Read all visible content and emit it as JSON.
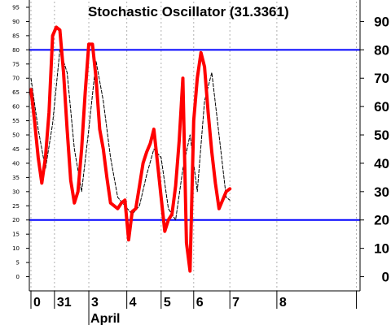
{
  "chart_data": {
    "type": "line",
    "title": "Stochastic Oscillator (31.3361)",
    "ylim": [
      -5,
      97
    ],
    "y_ticks_right": [
      0,
      10,
      20,
      30,
      40,
      50,
      60,
      70,
      80,
      90
    ],
    "y_ticks_left": [
      0,
      5,
      10,
      15,
      20,
      25,
      30,
      35,
      40,
      45,
      50,
      55,
      60,
      65,
      70,
      75,
      80,
      85,
      90,
      95
    ],
    "x_ticks": [
      {
        "label": "0",
        "x": 0
      },
      {
        "label": "31",
        "x": 6.5
      },
      {
        "label": "3",
        "x": 16
      },
      {
        "label": "4",
        "x": 26.5
      },
      {
        "label": "5",
        "x": 36
      },
      {
        "label": "6",
        "x": 45
      },
      {
        "label": "7",
        "x": 55
      },
      {
        "label": "8",
        "x": 68
      },
      {
        "label": "",
        "x": 90
      }
    ],
    "month_label": {
      "label": "April",
      "x": 16
    },
    "xlim": [
      0,
      91
    ],
    "reference_lines": [
      {
        "value": 80,
        "color": "#0000ff"
      },
      {
        "value": 20,
        "color": "#0000ff"
      }
    ],
    "grid": "vertical-dotted",
    "series": [
      {
        "color": "#ff0000",
        "style": "thick-solid",
        "points": [
          [
            0,
            66
          ],
          [
            1,
            55
          ],
          [
            2,
            42
          ],
          [
            3,
            33
          ],
          [
            4,
            42
          ],
          [
            5,
            58
          ],
          [
            6,
            85
          ],
          [
            7,
            88
          ],
          [
            8,
            87
          ],
          [
            9,
            72
          ],
          [
            10,
            52
          ],
          [
            11,
            34
          ],
          [
            12,
            26
          ],
          [
            13,
            30
          ],
          [
            14,
            45
          ],
          [
            15,
            65
          ],
          [
            16,
            82
          ],
          [
            17,
            82
          ],
          [
            18,
            70
          ],
          [
            19,
            52
          ],
          [
            20,
            45
          ],
          [
            21,
            35
          ],
          [
            22,
            26
          ],
          [
            23,
            25
          ],
          [
            24,
            24
          ],
          [
            25,
            26
          ],
          [
            26,
            27
          ],
          [
            27,
            13
          ],
          [
            28,
            23
          ],
          [
            29,
            24
          ],
          [
            30,
            32
          ],
          [
            31,
            40
          ],
          [
            32,
            44
          ],
          [
            33,
            47
          ],
          [
            34,
            52
          ],
          [
            35,
            40
          ],
          [
            36,
            28
          ],
          [
            37,
            16
          ],
          [
            38,
            20
          ],
          [
            39,
            22
          ],
          [
            40,
            32
          ],
          [
            41,
            48
          ],
          [
            42,
            70
          ],
          [
            43,
            12
          ],
          [
            44,
            2
          ],
          [
            45,
            55
          ],
          [
            46,
            70
          ],
          [
            47,
            79
          ],
          [
            48,
            74
          ],
          [
            49,
            58
          ],
          [
            50,
            44
          ],
          [
            51,
            33
          ],
          [
            52,
            24
          ],
          [
            53,
            27
          ],
          [
            54,
            30
          ],
          [
            55,
            31
          ]
        ]
      },
      {
        "color": "#000000",
        "style": "thin-dashed",
        "points": [
          [
            0,
            70
          ],
          [
            2,
            52
          ],
          [
            4,
            38
          ],
          [
            6,
            54
          ],
          [
            8,
            80
          ],
          [
            10,
            72
          ],
          [
            12,
            45
          ],
          [
            14,
            30
          ],
          [
            16,
            52
          ],
          [
            18,
            76
          ],
          [
            20,
            62
          ],
          [
            22,
            42
          ],
          [
            24,
            28
          ],
          [
            26,
            25
          ],
          [
            28,
            22
          ],
          [
            30,
            25
          ],
          [
            32,
            36
          ],
          [
            34,
            45
          ],
          [
            36,
            42
          ],
          [
            38,
            24
          ],
          [
            40,
            20
          ],
          [
            42,
            38
          ],
          [
            44,
            50
          ],
          [
            46,
            30
          ],
          [
            48,
            62
          ],
          [
            50,
            72
          ],
          [
            52,
            50
          ],
          [
            54,
            28
          ],
          [
            55,
            27
          ]
        ]
      }
    ]
  }
}
